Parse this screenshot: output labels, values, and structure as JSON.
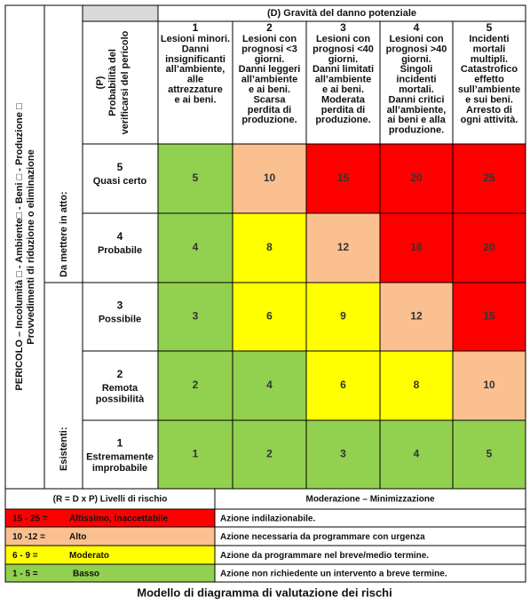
{
  "header": {
    "left_title": [
      "PERICOLO – Incolumità □ - Ambiente□ - Beni □ - Produzione □",
      "Provvedimenti di riduzione o eliminazione"
    ],
    "measures": [
      "Da mettere in atto:",
      "Esistenti:"
    ],
    "probability_title": [
      "(P)",
      "Probabilità del",
      "verificarsi del pericolo"
    ],
    "severity_title": "(D) Gravità del danno potenziale"
  },
  "severity": [
    {
      "level": "1",
      "description": [
        "Lesioni minori.",
        "Danni",
        "insignificanti",
        "all’ambiente,",
        "alle",
        "attrezzature",
        "e ai beni."
      ]
    },
    {
      "level": "2",
      "description": [
        "Lesioni con",
        "prognosi <3",
        "giorni.",
        "Danni leggeri",
        "all’ambiente",
        "e ai beni.",
        "Scarsa",
        "perdita di",
        "produzione."
      ]
    },
    {
      "level": "3",
      "description": [
        "Lesioni con",
        "prognosi <40",
        "giorni.",
        "Danni limitati",
        "all’ambiente",
        "e ai beni.",
        "Moderata",
        "perdita di",
        "produzione."
      ]
    },
    {
      "level": "4",
      "description": [
        "Lesioni con",
        "prognosi >40",
        "giorni.",
        "Singoli",
        "incidenti",
        "mortali.",
        "Danni critici",
        "all’ambiente,",
        "ai beni e alla",
        "produzione."
      ]
    },
    {
      "level": "5",
      "description": [
        "Incidenti",
        "mortali",
        "multipli.",
        "Catastrofico",
        "effetto",
        "sull’ambiente",
        "e sui beni.",
        "Arresto di",
        "ogni attività."
      ]
    }
  ],
  "matrix": [
    {
      "level": "5",
      "label": [
        "Quasi certo"
      ],
      "cells": [
        5,
        10,
        15,
        20,
        25
      ],
      "colors": [
        "#92d050",
        "#fac090",
        "#ff0000",
        "#ff0000",
        "#ff0000"
      ]
    },
    {
      "level": "4",
      "label": [
        "Probabile"
      ],
      "cells": [
        4,
        8,
        12,
        16,
        20
      ],
      "colors": [
        "#92d050",
        "#ffff00",
        "#fac090",
        "#ff0000",
        "#ff0000"
      ]
    },
    {
      "level": "3",
      "label": [
        "Possibile"
      ],
      "cells": [
        3,
        6,
        9,
        12,
        15
      ],
      "colors": [
        "#92d050",
        "#ffff00",
        "#ffff00",
        "#fac090",
        "#ff0000"
      ]
    },
    {
      "level": "2",
      "label": [
        "Remota",
        "possibilità"
      ],
      "cells": [
        2,
        4,
        6,
        8,
        10
      ],
      "colors": [
        "#92d050",
        "#92d050",
        "#ffff00",
        "#ffff00",
        "#fac090"
      ]
    },
    {
      "level": "1",
      "label": [
        "Estremamente",
        "improbabile"
      ],
      "cells": [
        1,
        2,
        3,
        4,
        5
      ],
      "colors": [
        "#92d050",
        "#92d050",
        "#92d050",
        "#92d050",
        "#92d050"
      ]
    }
  ],
  "legend": {
    "levels_title": "(R = D x P)  Livelli di rischio",
    "actions_title": "Moderazione – Minimizzazione",
    "rows": [
      {
        "range": "15 - 25 =",
        "label": "Altissimo, inaccettabile",
        "action": "Azione indilazionabile.",
        "color": "#ff0000"
      },
      {
        "range": "10 -12 =",
        "label": "Alto",
        "action": "Azione necessaria da programmare con urgenza",
        "color": "#fac090"
      },
      {
        "range": "6 - 9 =",
        "label": "Moderato",
        "action": "Azione da programmare nel breve/medio termine.",
        "color": "#ffff00"
      },
      {
        "range": "1 - 5 =",
        "label": "Basso",
        "action": "Azione non richiedente un intervento a breve termine.",
        "color": "#92d050"
      }
    ]
  },
  "caption": "Modello di diagramma di valutazione dei rischi"
}
